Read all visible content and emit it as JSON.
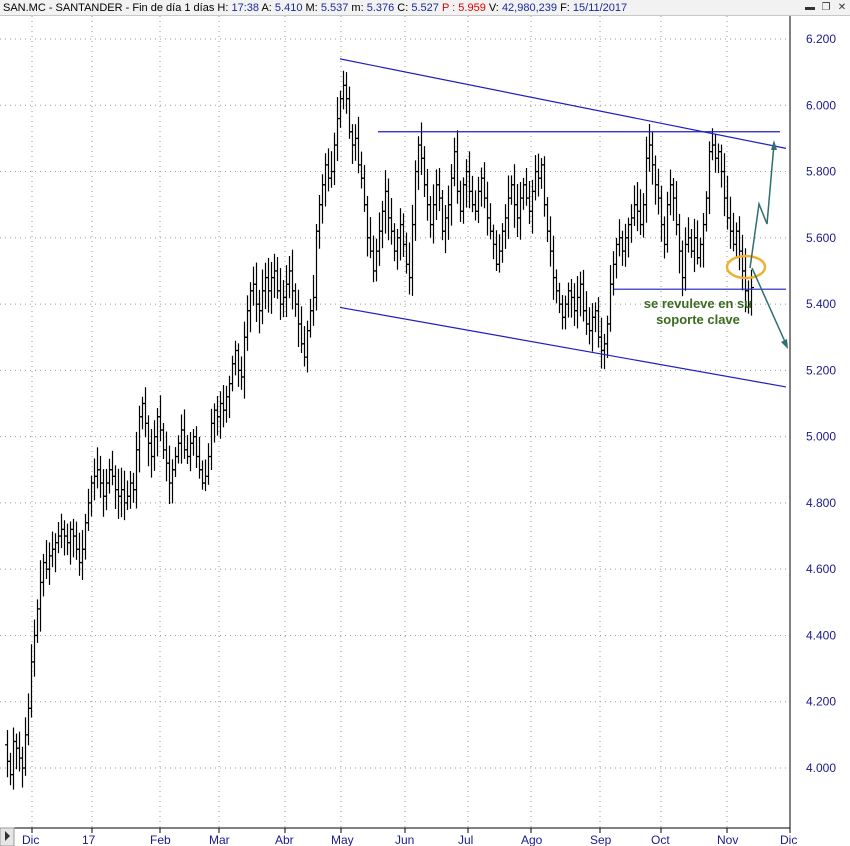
{
  "header": {
    "symbol": "SAN.MC - SANTANDER",
    "period": "Fin de día 1 días",
    "h_label": "H:",
    "h_value": "17:38",
    "a_label": "A:",
    "a_value": "5.410",
    "m_label": "M:",
    "m_value": "5.537",
    "mi_label": "m:",
    "mi_value": "5.376",
    "c_label": "C:",
    "c_value": "5.527",
    "p_label": "P :",
    "p_value": "5.959",
    "v_label": "V:",
    "v_value": "42,980,239",
    "f_label": "F:",
    "f_value": "15/11/2017"
  },
  "chart_data": {
    "type": "ohlc",
    "title": "SAN.MC - SANTANDER",
    "xlabel": "",
    "ylabel": "",
    "ylim": [
      3.9,
      6.25
    ],
    "y_ticks": [
      "6.200",
      "6.000",
      "5.800",
      "5.600",
      "5.400",
      "5.200",
      "5.000",
      "4.800",
      "4.600",
      "4.400",
      "4.200",
      "4.000"
    ],
    "x_ticks": [
      "Dic",
      "17",
      "Feb",
      "Mar",
      "Abr",
      "May",
      "Jun",
      "Jul",
      "Ago",
      "Sep",
      "Oct",
      "Nov",
      "Dic"
    ],
    "grid": true,
    "colors": {
      "bars": "#000000",
      "lines": "#1f1fbf",
      "arrows": "#2e6f6f",
      "ellipse": "#f0b030",
      "annotation": "#3a6b1e",
      "axis_text": "#1a1a8c"
    },
    "series": [
      {
        "name": "",
        "points": [
          [
            0,
            4.07
          ],
          [
            3,
            4.02
          ],
          [
            6,
            3.98
          ],
          [
            9,
            4.08
          ],
          [
            12,
            4.06
          ],
          [
            15,
            4.03
          ],
          [
            18,
            4.0
          ],
          [
            21,
            4.1
          ],
          [
            24,
            4.18
          ],
          [
            27,
            4.32
          ],
          [
            30,
            4.4
          ],
          [
            33,
            4.48
          ],
          [
            36,
            4.56
          ],
          [
            39,
            4.62
          ],
          [
            42,
            4.6
          ],
          [
            45,
            4.64
          ],
          [
            48,
            4.66
          ],
          [
            51,
            4.68
          ],
          [
            54,
            4.7
          ],
          [
            57,
            4.72
          ],
          [
            60,
            4.7
          ],
          [
            63,
            4.68
          ],
          [
            66,
            4.72
          ],
          [
            69,
            4.7
          ],
          [
            72,
            4.66
          ],
          [
            75,
            4.62
          ],
          [
            78,
            4.66
          ],
          [
            81,
            4.74
          ],
          [
            84,
            4.8
          ],
          [
            87,
            4.86
          ],
          [
            90,
            4.88
          ],
          [
            93,
            4.9
          ],
          [
            96,
            4.86
          ],
          [
            99,
            4.82
          ],
          [
            102,
            4.86
          ],
          [
            105,
            4.9
          ],
          [
            108,
            4.88
          ],
          [
            111,
            4.84
          ],
          [
            114,
            4.82
          ],
          [
            117,
            4.84
          ],
          [
            120,
            4.8
          ],
          [
            123,
            4.82
          ],
          [
            126,
            4.86
          ],
          [
            129,
            4.84
          ],
          [
            132,
            4.96
          ],
          [
            135,
            5.06
          ],
          [
            138,
            5.1
          ],
          [
            141,
            5.04
          ],
          [
            144,
            4.98
          ],
          [
            147,
            4.94
          ],
          [
            150,
            5.0
          ],
          [
            153,
            5.06
          ],
          [
            156,
            5.02
          ],
          [
            159,
            4.96
          ],
          [
            162,
            4.92
          ],
          [
            165,
            4.86
          ],
          [
            168,
            4.9
          ],
          [
            171,
            4.94
          ],
          [
            174,
            4.98
          ],
          [
            177,
            5.02
          ],
          [
            180,
            4.96
          ],
          [
            183,
            4.94
          ],
          [
            186,
            4.98
          ],
          [
            189,
            5.0
          ],
          [
            192,
            4.94
          ],
          [
            195,
            4.9
          ],
          [
            198,
            4.86
          ],
          [
            201,
            4.88
          ],
          [
            204,
            4.94
          ],
          [
            207,
            5.04
          ],
          [
            210,
            5.08
          ],
          [
            213,
            5.06
          ],
          [
            216,
            5.1
          ],
          [
            219,
            5.08
          ],
          [
            222,
            5.12
          ],
          [
            225,
            5.16
          ],
          [
            228,
            5.22
          ],
          [
            231,
            5.26
          ],
          [
            234,
            5.2
          ],
          [
            237,
            5.18
          ],
          [
            240,
            5.3
          ],
          [
            243,
            5.38
          ],
          [
            246,
            5.44
          ],
          [
            249,
            5.46
          ],
          [
            252,
            5.4
          ],
          [
            255,
            5.38
          ],
          [
            258,
            5.44
          ],
          [
            261,
            5.48
          ],
          [
            264,
            5.44
          ],
          [
            267,
            5.48
          ],
          [
            270,
            5.5
          ],
          [
            273,
            5.44
          ],
          [
            276,
            5.4
          ],
          [
            279,
            5.42
          ],
          [
            282,
            5.46
          ],
          [
            285,
            5.5
          ],
          [
            288,
            5.44
          ],
          [
            291,
            5.4
          ],
          [
            294,
            5.34
          ],
          [
            297,
            5.28
          ],
          [
            300,
            5.24
          ],
          [
            303,
            5.32
          ],
          [
            306,
            5.38
          ],
          [
            309,
            5.42
          ],
          [
            312,
            5.62
          ],
          [
            315,
            5.7
          ],
          [
            318,
            5.76
          ],
          [
            321,
            5.82
          ],
          [
            324,
            5.78
          ],
          [
            327,
            5.8
          ],
          [
            330,
            5.88
          ],
          [
            333,
            5.96
          ],
          [
            336,
            6.02
          ],
          [
            339,
            6.06
          ],
          [
            342,
            6.02
          ],
          [
            345,
            5.92
          ],
          [
            348,
            5.88
          ],
          [
            351,
            5.9
          ],
          [
            354,
            5.82
          ],
          [
            357,
            5.78
          ],
          [
            360,
            5.7
          ],
          [
            363,
            5.6
          ],
          [
            366,
            5.56
          ],
          [
            369,
            5.5
          ],
          [
            372,
            5.56
          ],
          [
            375,
            5.62
          ],
          [
            378,
            5.68
          ],
          [
            381,
            5.74
          ],
          [
            384,
            5.66
          ],
          [
            387,
            5.62
          ],
          [
            390,
            5.56
          ],
          [
            393,
            5.6
          ],
          [
            396,
            5.64
          ],
          [
            399,
            5.58
          ],
          [
            402,
            5.52
          ],
          [
            405,
            5.48
          ],
          [
            408,
            5.64
          ],
          [
            411,
            5.8
          ],
          [
            414,
            5.88
          ],
          [
            417,
            5.84
          ],
          [
            420,
            5.76
          ],
          [
            423,
            5.7
          ],
          [
            426,
            5.64
          ],
          [
            429,
            5.7
          ],
          [
            432,
            5.76
          ],
          [
            435,
            5.72
          ],
          [
            438,
            5.62
          ],
          [
            441,
            5.66
          ],
          [
            444,
            5.7
          ],
          [
            447,
            5.78
          ],
          [
            450,
            5.86
          ],
          [
            453,
            5.74
          ],
          [
            456,
            5.68
          ],
          [
            459,
            5.76
          ],
          [
            462,
            5.8
          ],
          [
            465,
            5.74
          ],
          [
            468,
            5.7
          ],
          [
            471,
            5.68
          ],
          [
            474,
            5.74
          ],
          [
            477,
            5.78
          ],
          [
            480,
            5.72
          ],
          [
            483,
            5.66
          ],
          [
            486,
            5.62
          ],
          [
            489,
            5.58
          ],
          [
            492,
            5.52
          ],
          [
            495,
            5.56
          ],
          [
            498,
            5.62
          ],
          [
            501,
            5.66
          ],
          [
            504,
            5.72
          ],
          [
            507,
            5.76
          ],
          [
            510,
            5.7
          ],
          [
            513,
            5.66
          ],
          [
            516,
            5.72
          ],
          [
            519,
            5.76
          ],
          [
            522,
            5.72
          ],
          [
            525,
            5.68
          ],
          [
            528,
            5.74
          ],
          [
            531,
            5.8
          ],
          [
            534,
            5.78
          ],
          [
            537,
            5.82
          ],
          [
            540,
            5.7
          ],
          [
            543,
            5.62
          ],
          [
            546,
            5.56
          ],
          [
            549,
            5.48
          ],
          [
            552,
            5.44
          ],
          [
            555,
            5.4
          ],
          [
            558,
            5.36
          ],
          [
            561,
            5.4
          ],
          [
            564,
            5.44
          ],
          [
            567,
            5.42
          ],
          [
            570,
            5.38
          ],
          [
            573,
            5.42
          ],
          [
            576,
            5.46
          ],
          [
            579,
            5.38
          ],
          [
            582,
            5.34
          ],
          [
            585,
            5.32
          ],
          [
            588,
            5.36
          ],
          [
            591,
            5.38
          ],
          [
            594,
            5.3
          ],
          [
            597,
            5.26
          ],
          [
            600,
            5.28
          ],
          [
            603,
            5.34
          ],
          [
            606,
            5.46
          ],
          [
            609,
            5.52
          ],
          [
            612,
            5.58
          ],
          [
            615,
            5.6
          ],
          [
            618,
            5.56
          ],
          [
            621,
            5.6
          ],
          [
            624,
            5.64
          ],
          [
            627,
            5.66
          ],
          [
            630,
            5.7
          ],
          [
            633,
            5.68
          ],
          [
            636,
            5.64
          ],
          [
            639,
            5.7
          ],
          [
            642,
            5.84
          ],
          [
            645,
            5.88
          ],
          [
            648,
            5.82
          ],
          [
            651,
            5.76
          ],
          [
            654,
            5.72
          ],
          [
            657,
            5.64
          ],
          [
            660,
            5.58
          ],
          [
            663,
            5.7
          ],
          [
            666,
            5.76
          ],
          [
            669,
            5.72
          ],
          [
            672,
            5.64
          ],
          [
            675,
            5.56
          ],
          [
            678,
            5.48
          ],
          [
            681,
            5.58
          ],
          [
            684,
            5.6
          ],
          [
            687,
            5.56
          ],
          [
            690,
            5.6
          ],
          [
            693,
            5.54
          ],
          [
            696,
            5.58
          ],
          [
            699,
            5.64
          ],
          [
            702,
            5.72
          ],
          [
            705,
            5.86
          ],
          [
            708,
            5.88
          ],
          [
            711,
            5.84
          ],
          [
            714,
            5.86
          ],
          [
            717,
            5.8
          ],
          [
            720,
            5.72
          ],
          [
            723,
            5.66
          ],
          [
            726,
            5.62
          ],
          [
            729,
            5.58
          ],
          [
            732,
            5.62
          ],
          [
            735,
            5.56
          ],
          [
            738,
            5.5
          ],
          [
            741,
            5.44
          ],
          [
            744,
            5.4
          ],
          [
            747,
            5.45
          ]
        ]
      }
    ],
    "trendlines": [
      {
        "from": [
          340,
          6.14
        ],
        "to": [
          786,
          5.87
        ]
      },
      {
        "from": [
          340,
          5.39
        ],
        "to": [
          786,
          5.15
        ]
      },
      {
        "from": [
          378,
          5.92
        ],
        "to": [
          780,
          5.92
        ]
      },
      {
        "from": [
          614,
          5.445
        ],
        "to": [
          786,
          5.445
        ]
      }
    ],
    "annotation": {
      "line1": "se revuleve en su",
      "line2": "soporte clave"
    }
  }
}
